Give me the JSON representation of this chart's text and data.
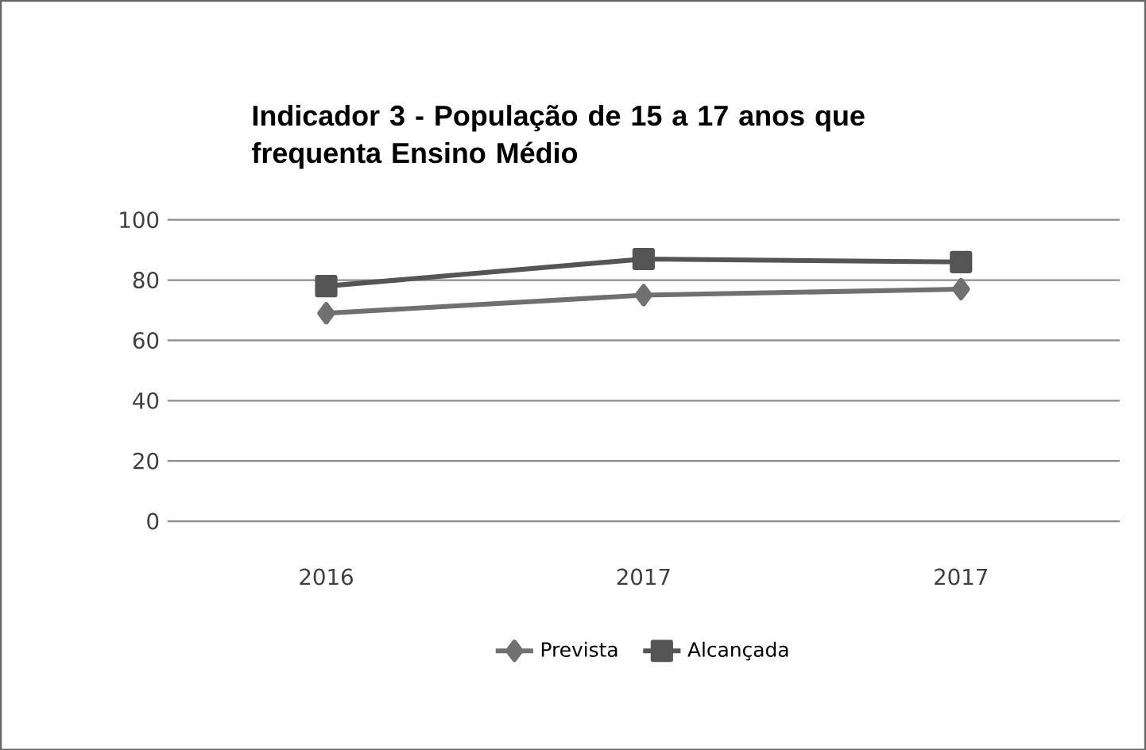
{
  "chart_data": {
    "type": "line",
    "title": "Indicador 3 - População de 15 a 17 anos que frequenta Ensino Médio",
    "categories": [
      "2016",
      "2017",
      "2017"
    ],
    "series": [
      {
        "name": "Prevista",
        "color": "#707070",
        "marker": "diamond",
        "values": [
          69,
          75,
          77
        ]
      },
      {
        "name": "Alcançada",
        "color": "#555555",
        "marker": "square",
        "values": [
          78,
          87,
          86
        ]
      }
    ],
    "ylim": [
      0,
      100
    ],
    "yticks": [
      0,
      20,
      40,
      60,
      80,
      100
    ],
    "grid": "y",
    "legend": "bottom"
  }
}
